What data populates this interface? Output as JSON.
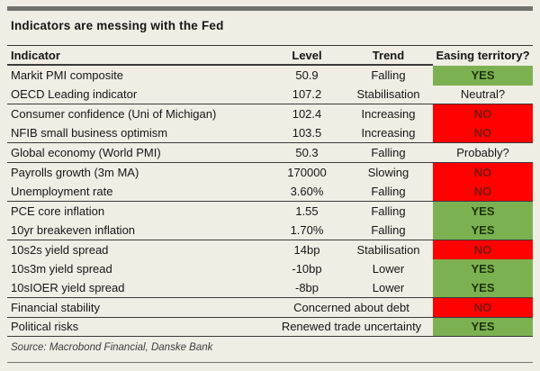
{
  "colors": {
    "bg": "#f0ede5",
    "bar": "#72726c",
    "line": "#3a3a38",
    "green": "#7cb152",
    "red": "#fe0100",
    "green-text": "#1d3307",
    "red-text": "#7c180d"
  },
  "chart_data": {
    "type": "table",
    "title": "Indicators are messing with the Fed",
    "source": "Source: Macrobond Financial, Danske Bank",
    "columns": {
      "indicator": "Indicator",
      "level": "Level",
      "trend": "Trend",
      "easing": "Easing territory?"
    },
    "rows": [
      {
        "indicator": "Markit PMI composite",
        "level": "50.9",
        "trend": "Falling",
        "easing": "YES",
        "easing_status": "yes"
      },
      {
        "indicator": "OECD Leading indicator",
        "level": "107.2",
        "trend": "Stabilisation",
        "easing": "Neutral?",
        "easing_status": "neutral"
      },
      {
        "indicator": "Consumer confidence (Uni of Michigan)",
        "level": "102.4",
        "trend": "Increasing",
        "easing": "NO",
        "easing_status": "no"
      },
      {
        "indicator": "NFIB small business optimism",
        "level": "103.5",
        "trend": "Increasing",
        "easing": "NO",
        "easing_status": "no"
      },
      {
        "indicator": "Global economy (World PMI)",
        "level": "50.3",
        "trend": "Falling",
        "easing": "Probably?",
        "easing_status": "neutral"
      },
      {
        "indicator": "Payrolls growth (3m MA)",
        "level": "170000",
        "trend": "Slowing",
        "easing": "NO",
        "easing_status": "no"
      },
      {
        "indicator": "Unemployment rate",
        "level": "3.60%",
        "trend": "Falling",
        "easing": "NO",
        "easing_status": "no"
      },
      {
        "indicator": "PCE core inflation",
        "level": "1.55",
        "trend": "Falling",
        "easing": "YES",
        "easing_status": "yes"
      },
      {
        "indicator": "10yr breakeven inflation",
        "level": "1.70%",
        "trend": "Falling",
        "easing": "YES",
        "easing_status": "yes"
      },
      {
        "indicator": "10s2s yield spread",
        "level": "14bp",
        "trend": "Stabilisation",
        "easing": "NO",
        "easing_status": "no"
      },
      {
        "indicator": "10s3m yield spread",
        "level": "-10bp",
        "trend": "Lower",
        "easing": "YES",
        "easing_status": "yes"
      },
      {
        "indicator": "10sIOER yield spread",
        "level": "-8bp",
        "trend": "Lower",
        "easing": "YES",
        "easing_status": "yes"
      },
      {
        "indicator": "Financial stability",
        "note": "Concerned about debt",
        "easing": "NO",
        "easing_status": "no"
      },
      {
        "indicator": "Political risks",
        "note": "Renewed trade uncertainty",
        "easing": "YES",
        "easing_status": "yes"
      }
    ]
  }
}
